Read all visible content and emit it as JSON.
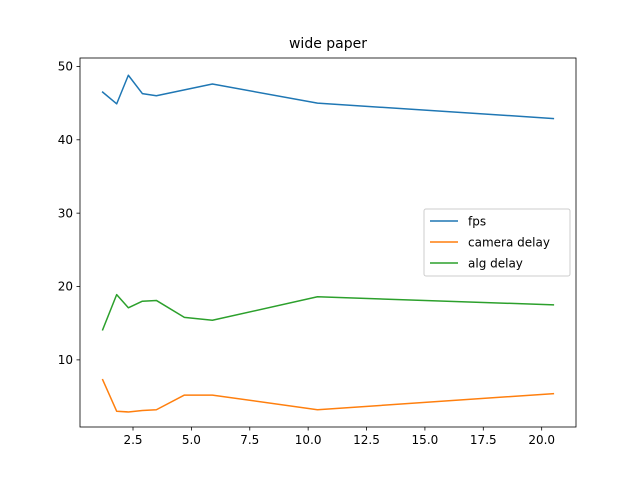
{
  "chart_data": {
    "type": "line",
    "title": "wide paper",
    "xlabel": "",
    "ylabel": "",
    "xlim": [
      0.23,
      21.47
    ],
    "ylim": [
      0.85,
      51.15
    ],
    "xticks": [
      2.5,
      5.0,
      7.5,
      10.0,
      12.5,
      15.0,
      17.5,
      20.0
    ],
    "xtick_labels": [
      "2.5",
      "5.0",
      "7.5",
      "10.0",
      "12.5",
      "15.0",
      "17.5",
      "20.0"
    ],
    "yticks": [
      10,
      20,
      30,
      40,
      50
    ],
    "ytick_labels": [
      "10",
      "20",
      "30",
      "40",
      "50"
    ],
    "grid": false,
    "legend_position": "center-right",
    "x": [
      1.2,
      1.8,
      2.3,
      2.9,
      3.5,
      4.7,
      5.9,
      10.4,
      20.5
    ],
    "series": [
      {
        "name": "fps",
        "color": "#1f77b4",
        "values": [
          46.5,
          44.9,
          48.8,
          46.3,
          46.0,
          46.8,
          47.6,
          45.0,
          42.9
        ]
      },
      {
        "name": "camera delay",
        "color": "#ff7f0e",
        "values": [
          7.3,
          3.0,
          2.9,
          3.1,
          3.2,
          5.2,
          5.2,
          3.2,
          5.4
        ]
      },
      {
        "name": "alg delay",
        "color": "#2ca02c",
        "values": [
          14.1,
          18.9,
          17.1,
          18.0,
          18.1,
          15.8,
          15.4,
          18.6,
          17.5
        ]
      }
    ]
  }
}
